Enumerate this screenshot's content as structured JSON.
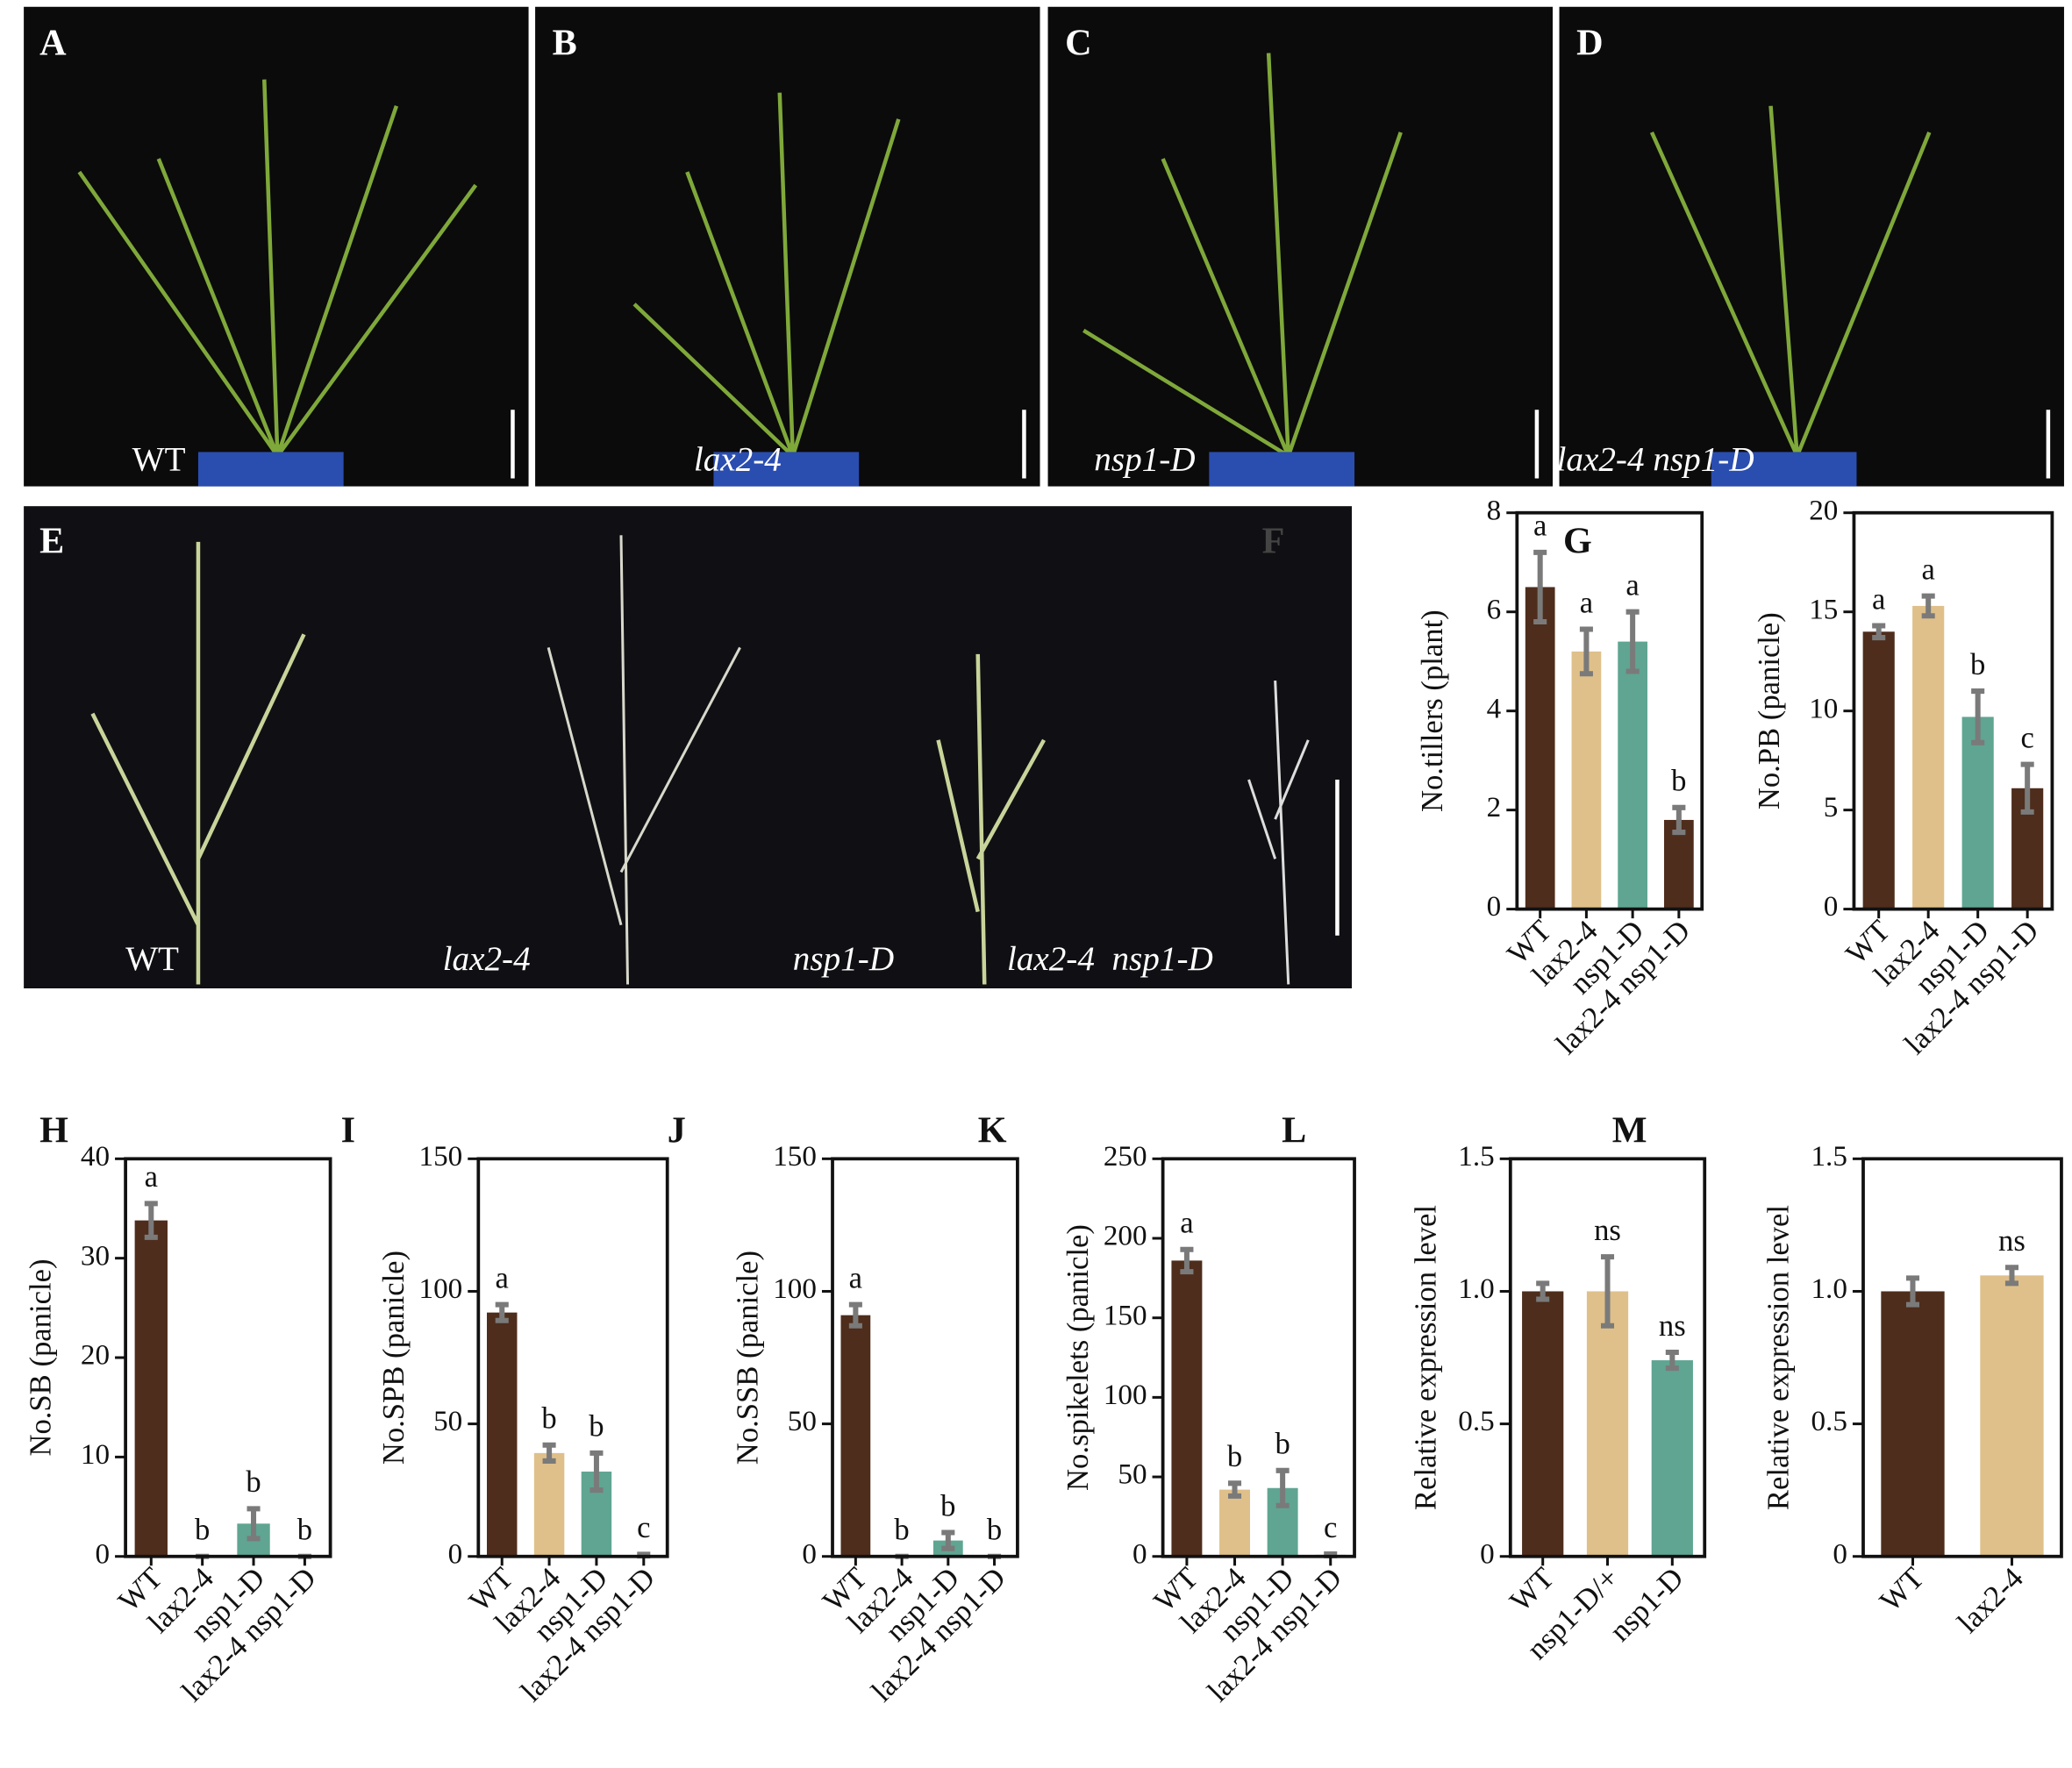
{
  "photos": {
    "panels": [
      {
        "letter": "A",
        "label": "WT"
      },
      {
        "letter": "B",
        "label": "lax2-4"
      },
      {
        "letter": "C",
        "label": "nsp1-D"
      },
      {
        "letter": "D",
        "label": "lax2-4 nsp1-D"
      }
    ],
    "panicles": {
      "letter": "E",
      "labels": [
        "WT",
        "lax2-4",
        "nsp1-D",
        "lax2-4  nsp1-D"
      ],
      "extra_letter": "F"
    }
  },
  "chart_data": [
    {
      "type": "bar",
      "panel": "G",
      "ylabel": "No.tillers (plant)",
      "categories": [
        "WT",
        "lax2-4",
        "nsp1-D",
        "lax2-4 nsp1-D"
      ],
      "values": [
        6.5,
        5.2,
        5.4,
        1.8
      ],
      "errors": [
        0.7,
        0.45,
        0.6,
        0.25
      ],
      "letters": [
        "a",
        "a",
        "a",
        "b"
      ],
      "colors": [
        "#4e2d1c",
        "#dfc08a",
        "#5fa592",
        "#4e2d1c"
      ],
      "ylim": [
        0,
        8
      ],
      "yticks": [
        0,
        2,
        4,
        6,
        8
      ]
    },
    {
      "type": "bar",
      "ylabel": "No.PB (panicle)",
      "categories": [
        "WT",
        "lax2-4",
        "nsp1-D",
        "lax2-4 nsp1-D"
      ],
      "values": [
        14,
        15.3,
        9.7,
        6.1
      ],
      "errors": [
        0.3,
        0.5,
        1.3,
        1.2
      ],
      "letters": [
        "a",
        "a",
        "b",
        "c"
      ],
      "colors": [
        "#4e2d1c",
        "#dfc08a",
        "#5fa592",
        "#4e2d1c"
      ],
      "ylim": [
        0,
        20
      ],
      "yticks": [
        0,
        5,
        10,
        15,
        20
      ]
    },
    {
      "type": "bar",
      "panel": "H",
      "ylabel": "No.SB (panicle)",
      "categories": [
        "WT",
        "lax2-4",
        "nsp1-D",
        "lax2-4 nsp1-D"
      ],
      "values": [
        33.8,
        0,
        3.3,
        0
      ],
      "errors": [
        1.7,
        0,
        1.5,
        0
      ],
      "letters": [
        "a",
        "b",
        "b",
        "b"
      ],
      "colors": [
        "#4e2d1c",
        "#dfc08a",
        "#5fa592",
        "#4e2d1c"
      ],
      "ylim": [
        0,
        40
      ],
      "yticks": [
        0,
        10,
        20,
        30,
        40
      ]
    },
    {
      "type": "bar",
      "panel": "I",
      "ylabel": "No.SPB (panicle)",
      "categories": [
        "WT",
        "lax2-4",
        "nsp1-D",
        "lax2-4 nsp1-D"
      ],
      "values": [
        92,
        39,
        32,
        0.5
      ],
      "errors": [
        3,
        3,
        7,
        0.3
      ],
      "letters": [
        "a",
        "b",
        "b",
        "c"
      ],
      "colors": [
        "#4e2d1c",
        "#dfc08a",
        "#5fa592",
        "#4e2d1c"
      ],
      "ylim": [
        0,
        150
      ],
      "yticks": [
        0,
        50,
        100,
        150
      ]
    },
    {
      "type": "bar",
      "panel": "J",
      "ylabel": "No.SSB (panicle)",
      "categories": [
        "WT",
        "lax2-4",
        "nsp1-D",
        "lax2-4 nsp1-D"
      ],
      "values": [
        91,
        0,
        6,
        0
      ],
      "errors": [
        4,
        0,
        3,
        0
      ],
      "letters": [
        "a",
        "b",
        "b",
        "b"
      ],
      "colors": [
        "#4e2d1c",
        "#dfc08a",
        "#5fa592",
        "#4e2d1c"
      ],
      "ylim": [
        0,
        150
      ],
      "yticks": [
        0,
        50,
        100,
        150
      ]
    },
    {
      "type": "bar",
      "panel": "K",
      "ylabel": "No.spikelets (panicle)",
      "categories": [
        "WT",
        "lax2-4",
        "nsp1-D",
        "lax2-4 nsp1-D"
      ],
      "values": [
        186,
        42,
        43,
        1
      ],
      "errors": [
        7,
        4,
        11,
        0.5
      ],
      "letters": [
        "a",
        "b",
        "b",
        "c"
      ],
      "colors": [
        "#4e2d1c",
        "#dfc08a",
        "#5fa592",
        "#4e2d1c"
      ],
      "ylim": [
        0,
        250
      ],
      "yticks": [
        0,
        50,
        100,
        150,
        200,
        250
      ]
    },
    {
      "type": "bar",
      "panel": "L",
      "ylabel": "Relative expression level",
      "categories": [
        "WT",
        "nsp1-D/+",
        "nsp1-D"
      ],
      "values": [
        1.0,
        1.0,
        0.74
      ],
      "errors": [
        0.03,
        0.13,
        0.03
      ],
      "letters": [
        null,
        "ns",
        "ns"
      ],
      "colors": [
        "#4e2d1c",
        "#dfc08a",
        "#5fa592"
      ],
      "ylim": [
        0,
        1.5
      ],
      "yticks": [
        0,
        0.5,
        {
          "value": 1,
          "label": "1.0"
        },
        1.5
      ]
    },
    {
      "type": "bar",
      "panel": "M",
      "ylabel": "Relative expression level",
      "categories": [
        "WT",
        "lax2-4"
      ],
      "values": [
        1.0,
        1.06
      ],
      "errors": [
        0.05,
        0.03
      ],
      "letters": [
        null,
        "ns"
      ],
      "colors": [
        "#4e2d1c",
        "#dfc08a"
      ],
      "ylim": [
        0,
        1.5
      ],
      "yticks": [
        0,
        0.5,
        {
          "value": 1,
          "label": "1.0"
        },
        1.5
      ]
    }
  ]
}
